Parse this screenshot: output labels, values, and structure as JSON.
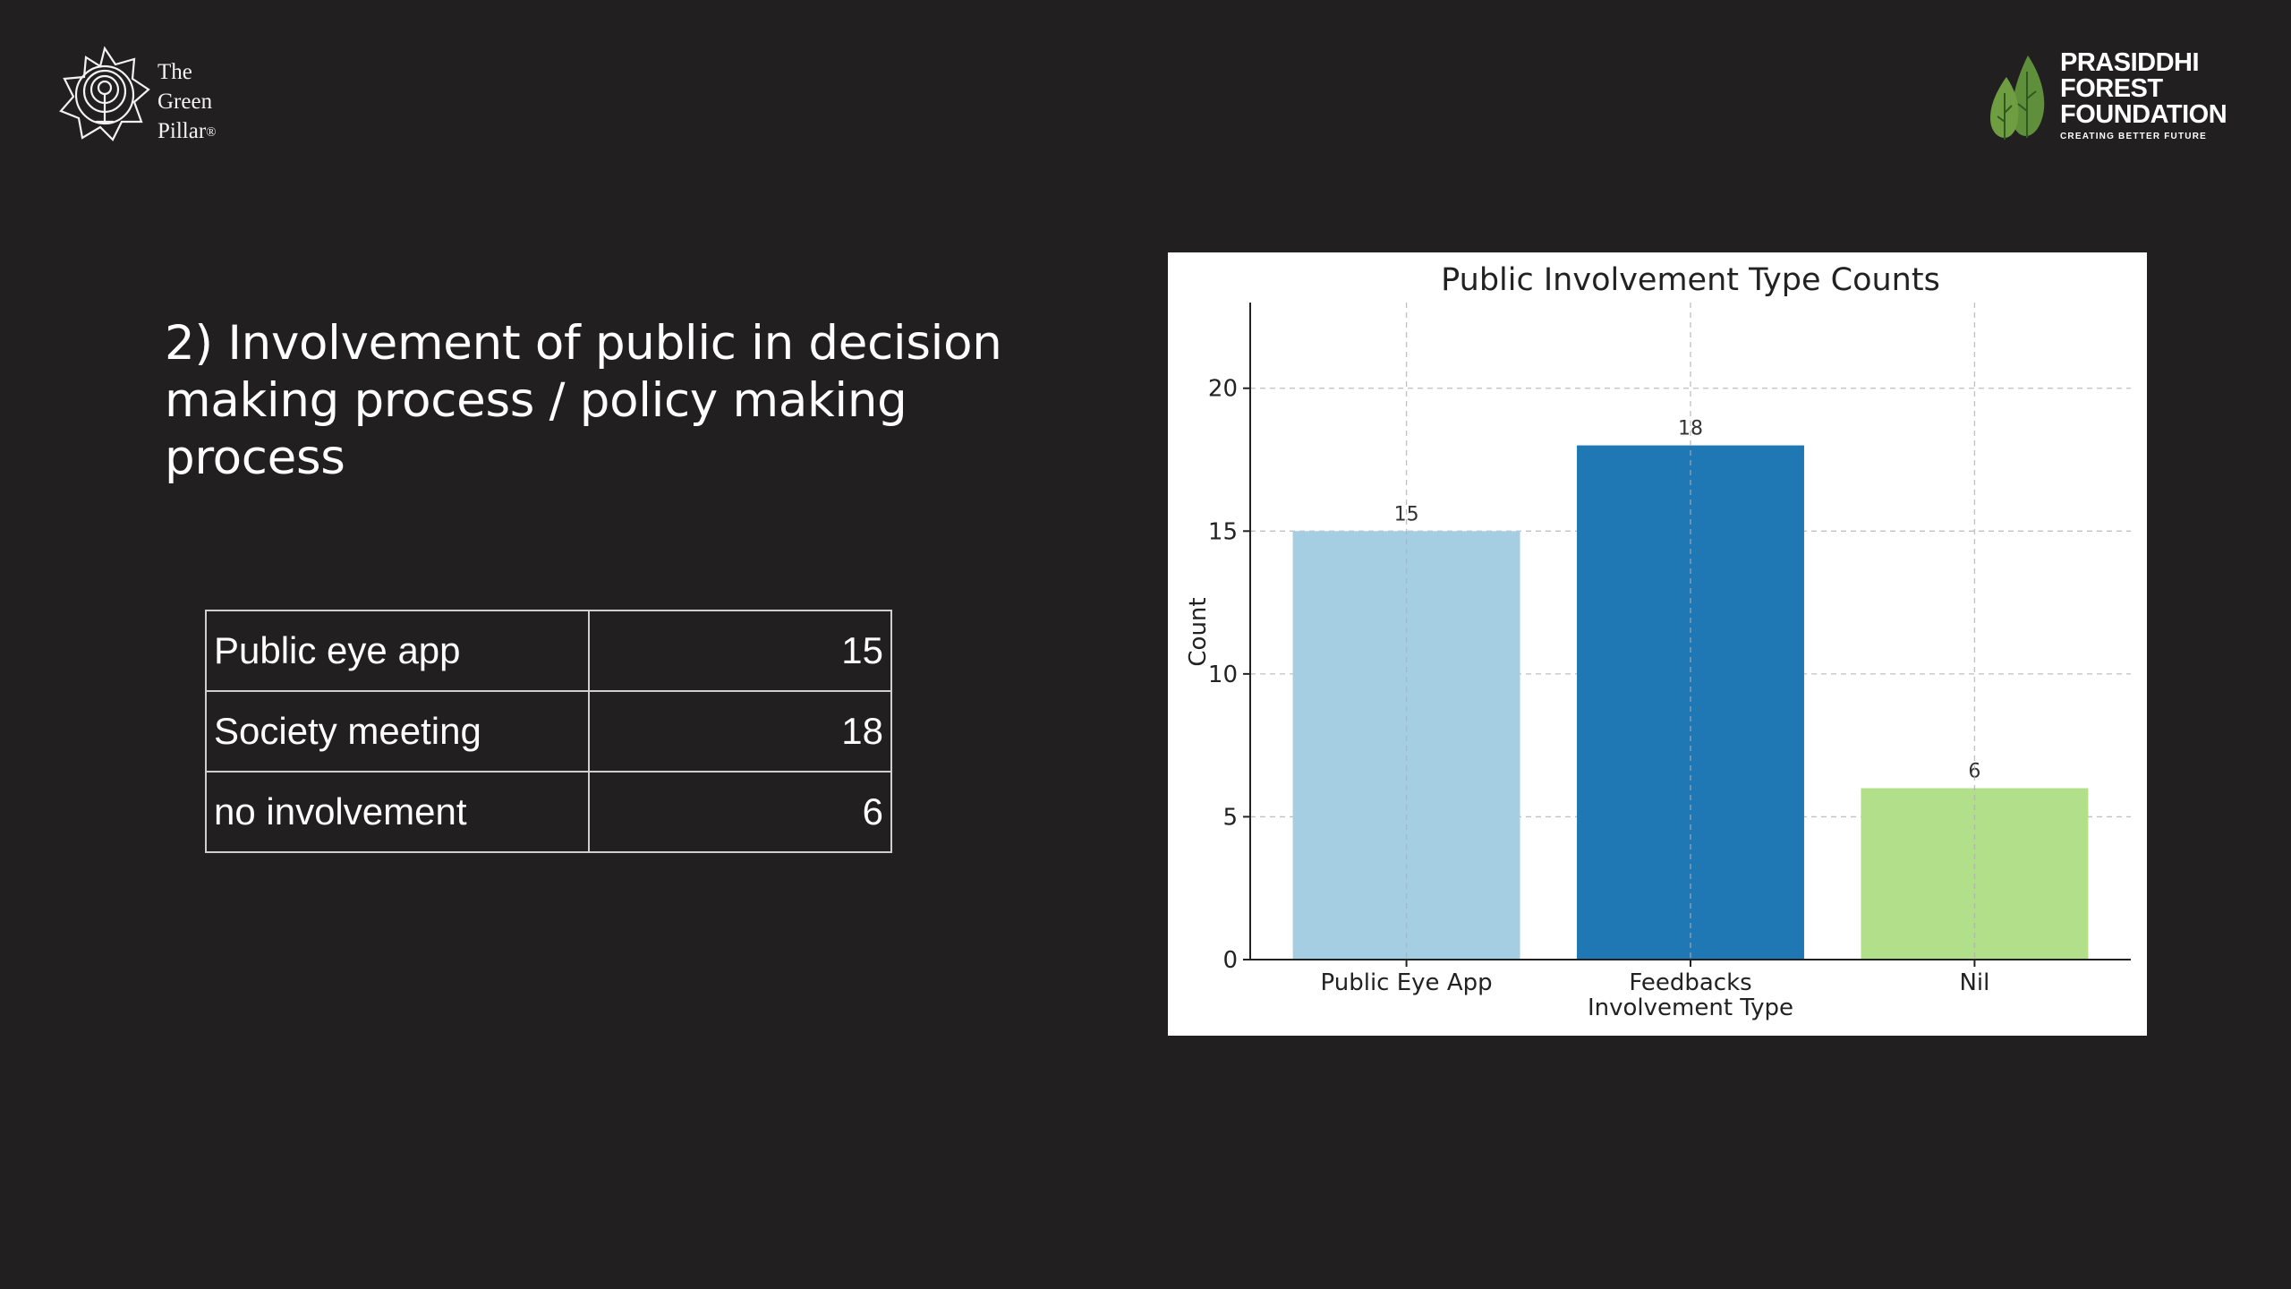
{
  "logos": {
    "left_brand_lines": [
      "The",
      "Green",
      "Pillar"
    ],
    "left_brand_mark": "®",
    "left_icon": "lotus-tree-icon",
    "right_org_lines": [
      "PRASIDDHI",
      "FOREST",
      "FOUNDATION"
    ],
    "right_tagline": "CREATING BETTER FUTURE",
    "right_icon": "trees-icon",
    "right_icon_color": "#5f8f3a"
  },
  "heading": "2) Involvement of public in decision making process / policy making process",
  "table": {
    "rows": [
      {
        "label": "Public eye app",
        "value": "15"
      },
      {
        "label": "Society meeting",
        "value": "18"
      },
      {
        "label": "no involvement",
        "value": "6"
      }
    ]
  },
  "chart_data": {
    "type": "bar",
    "title": "Public Involvement Type Counts",
    "xlabel": "Involvement Type",
    "ylabel": "Count",
    "categories": [
      "Public Eye App",
      "Feedbacks",
      "Nil"
    ],
    "values": [
      15,
      18,
      6
    ],
    "colors": [
      "#a6cee3",
      "#1f78b4",
      "#b2df8a"
    ],
    "ylim": [
      0,
      23
    ],
    "yticks": [
      0,
      5,
      10,
      15,
      20
    ],
    "grid": true
  }
}
